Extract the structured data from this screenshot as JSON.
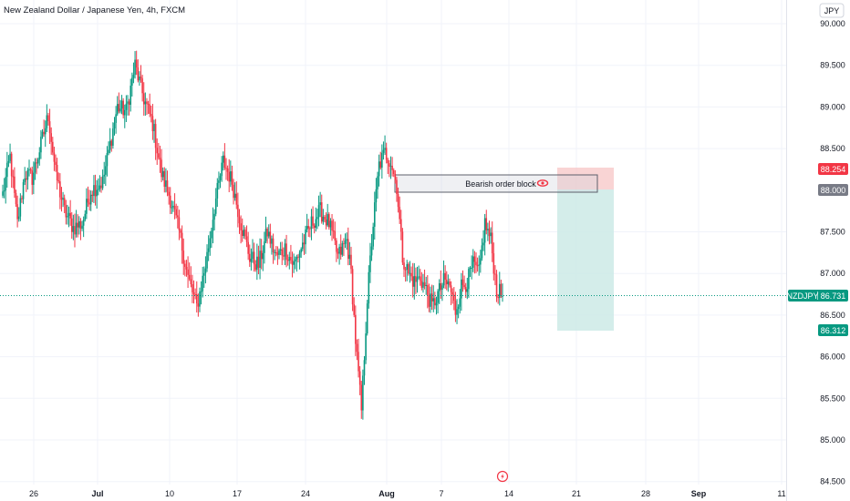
{
  "header": {
    "symbol_title": "New Zealand Dollar / Japanese Yen, 4h, FXCM",
    "currency_button": "JPY"
  },
  "price_axis": {
    "ticks": [
      "90.000",
      "89.500",
      "89.000",
      "88.500",
      "87.500",
      "87.000",
      "86.500",
      "86.000",
      "85.500",
      "85.000",
      "84.500"
    ]
  },
  "price_labels": {
    "stop": "88.254",
    "entry": "88.000",
    "ticker": "NZDJPY",
    "last": "86.731",
    "target": "86.312"
  },
  "annotation": {
    "order_block_label": "Bearish order block"
  },
  "colors": {
    "bull": "#089981",
    "bear": "#f23645",
    "stop_zone": "#f7c5c6",
    "target_zone": "#cdeae6",
    "ticker_badge": "#089981",
    "entry_badge": "#787b86"
  },
  "time_axis": {
    "ticks": [
      "26",
      "Jul",
      "10",
      "17",
      "24",
      "Aug",
      "7",
      "14",
      "21",
      "28",
      "Sep",
      "11"
    ]
  },
  "chart_data": {
    "type": "candlestick",
    "title": "New Zealand Dollar / Japanese Yen, 4h, FXCM",
    "ylim": [
      84.45,
      90.1
    ],
    "last_price": 86.731,
    "order_block": {
      "low": 87.97,
      "high": 88.18
    },
    "position": {
      "type": "short",
      "stop": 88.254,
      "entry": 88.0,
      "target": 86.312
    },
    "anchors": [
      [
        0,
        87.95
      ],
      [
        5,
        88.4
      ],
      [
        10,
        87.6
      ],
      [
        15,
        88.2
      ],
      [
        20,
        88.15
      ],
      [
        26,
        88.55
      ],
      [
        31,
        88.9
      ],
      [
        36,
        88.2
      ],
      [
        42,
        87.75
      ],
      [
        48,
        87.55
      ],
      [
        54,
        87.6
      ],
      [
        60,
        88.0
      ],
      [
        68,
        88.1
      ],
      [
        78,
        89.0
      ],
      [
        84,
        88.95
      ],
      [
        90,
        89.5
      ],
      [
        96,
        89.1
      ],
      [
        102,
        88.8
      ],
      [
        108,
        88.2
      ],
      [
        114,
        87.9
      ],
      [
        120,
        87.5
      ],
      [
        126,
        86.95
      ],
      [
        132,
        86.6
      ],
      [
        138,
        87.1
      ],
      [
        144,
        87.8
      ],
      [
        150,
        88.35
      ],
      [
        156,
        88.1
      ],
      [
        162,
        87.6
      ],
      [
        168,
        87.2
      ],
      [
        174,
        87.1
      ],
      [
        180,
        87.5
      ],
      [
        186,
        87.2
      ],
      [
        192,
        87.3
      ],
      [
        198,
        87.1
      ],
      [
        204,
        87.35
      ],
      [
        210,
        87.6
      ],
      [
        216,
        87.75
      ],
      [
        222,
        87.6
      ],
      [
        228,
        87.2
      ],
      [
        234,
        87.4
      ],
      [
        237,
        87.0
      ],
      [
        240,
        86.2
      ],
      [
        244,
        85.35
      ],
      [
        248,
        86.7
      ],
      [
        252,
        87.6
      ],
      [
        256,
        88.3
      ],
      [
        260,
        88.45
      ],
      [
        264,
        88.35
      ],
      [
        268,
        88.05
      ],
      [
        272,
        87.2
      ],
      [
        276,
        87.0
      ],
      [
        280,
        86.9
      ],
      [
        284,
        86.95
      ],
      [
        288,
        86.8
      ],
      [
        292,
        86.6
      ],
      [
        296,
        86.75
      ],
      [
        300,
        86.9
      ],
      [
        304,
        86.85
      ],
      [
        308,
        86.55
      ],
      [
        312,
        86.85
      ],
      [
        316,
        86.9
      ],
      [
        320,
        87.1
      ],
      [
        324,
        87.0
      ],
      [
        328,
        87.6
      ],
      [
        332,
        87.4
      ],
      [
        336,
        86.8
      ],
      [
        340,
        86.73
      ]
    ]
  }
}
